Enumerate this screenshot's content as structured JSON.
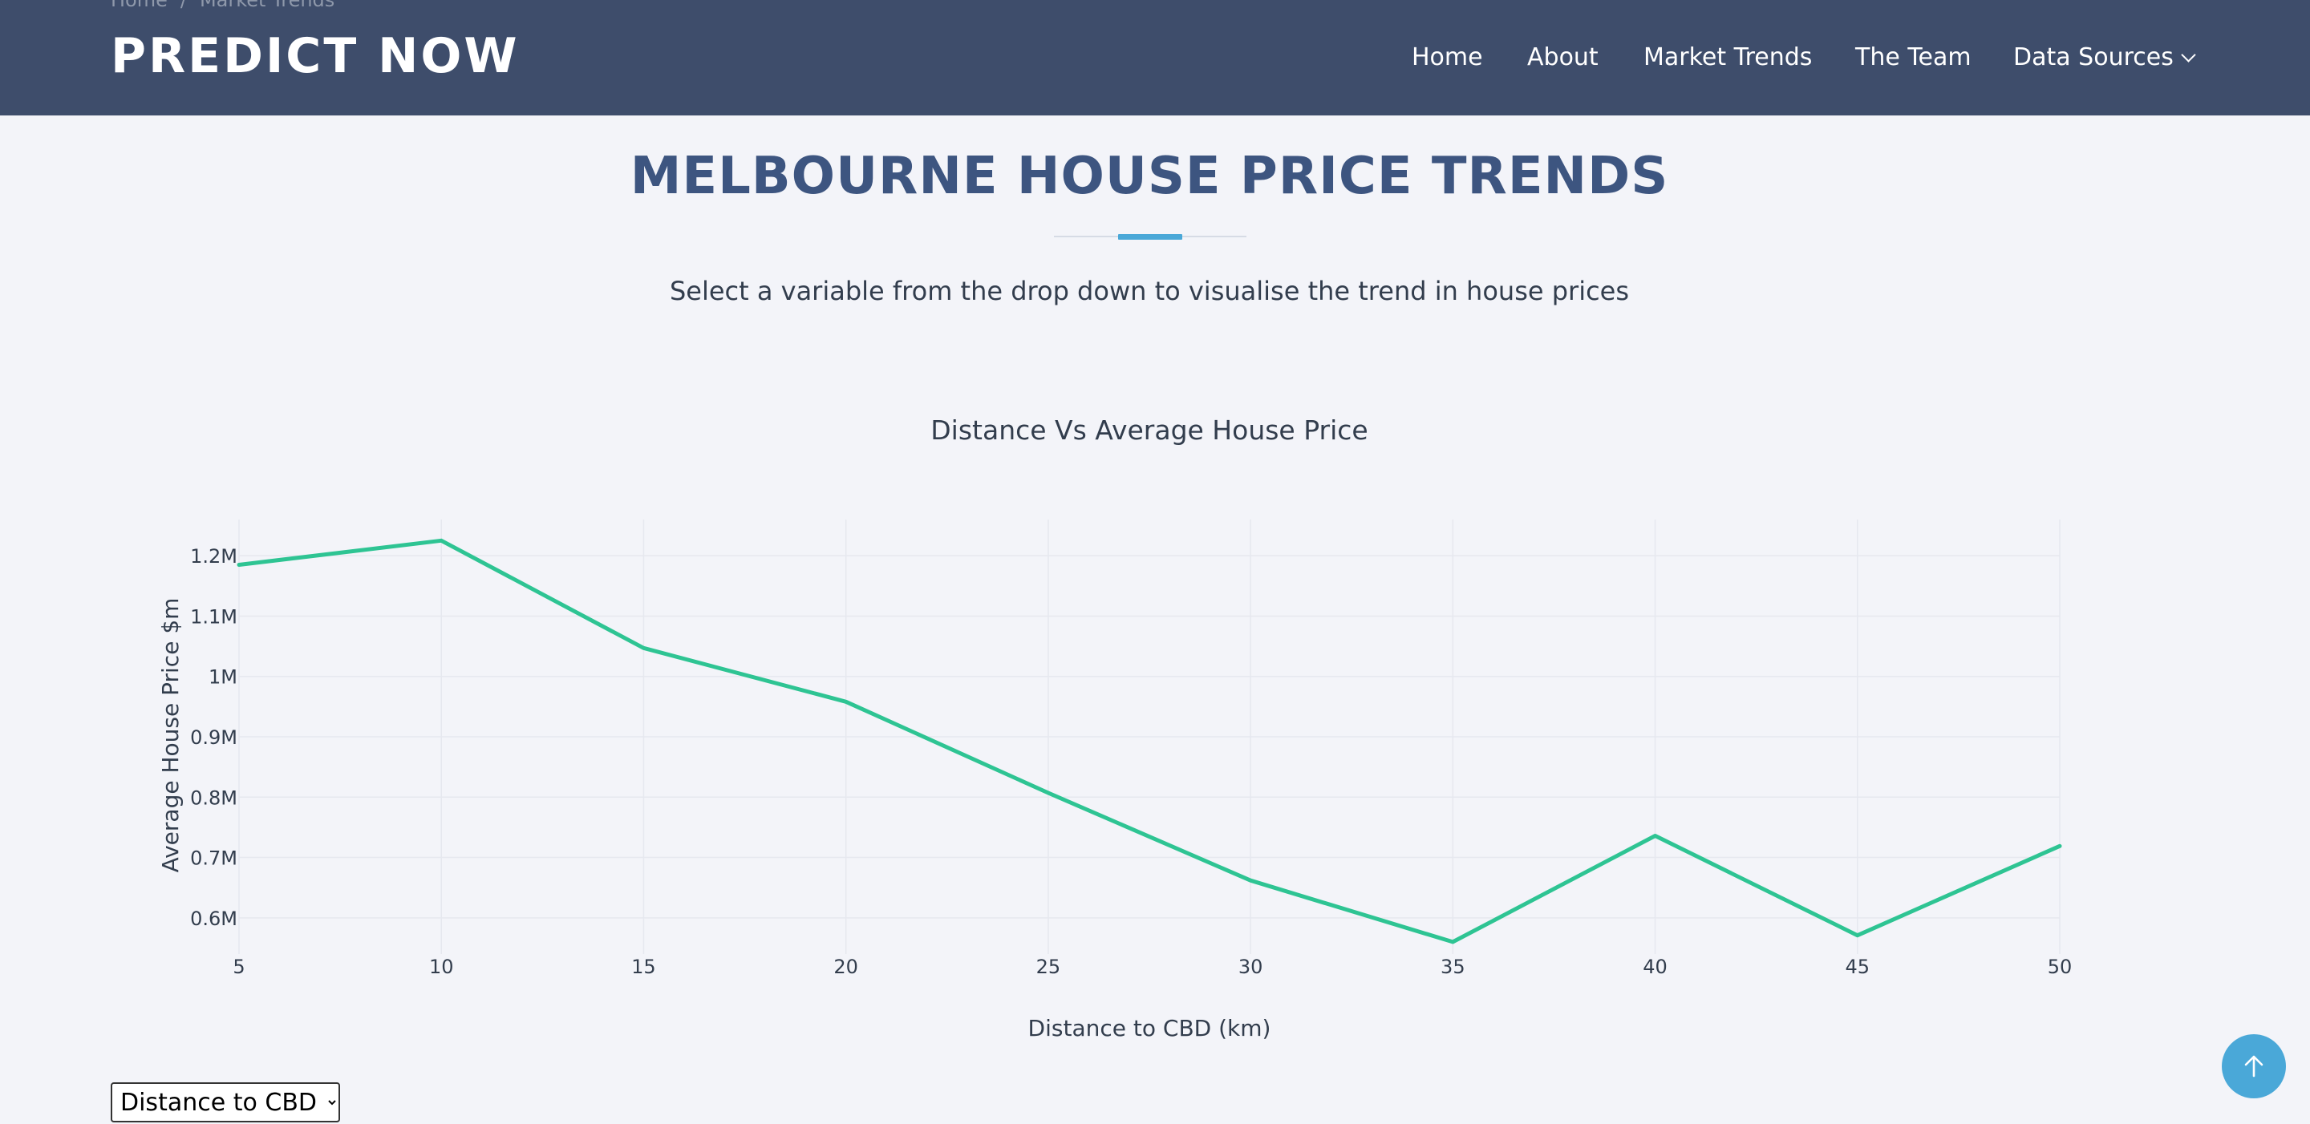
{
  "header": {
    "breadcrumb": [
      "Home",
      "/",
      "Market Trends"
    ],
    "logo": "PREDICT NOW",
    "nav": [
      {
        "label": "Home"
      },
      {
        "label": "About"
      },
      {
        "label": "Market Trends"
      },
      {
        "label": "The Team"
      },
      {
        "label": "Data Sources",
        "has_dropdown": true
      }
    ]
  },
  "main": {
    "title": "MELBOURNE HOUSE PRICE TRENDS",
    "subtitle": "Select a variable from the drop down to visualise the trend in house prices",
    "select": {
      "selected": "Distance to CBD",
      "options": [
        "Distance to CBD"
      ]
    }
  },
  "colors": {
    "header_bg": "#3e4d6b",
    "title": "#3d5580",
    "accent": "#4aa8d8",
    "line": "#2ec493",
    "page_bg": "#f3f4f9"
  },
  "chart_data": {
    "type": "line",
    "title": "Distance Vs Average House Price",
    "xlabel": "Distance to CBD (km)",
    "ylabel": "Average House Price $m",
    "x": [
      5,
      10,
      15,
      20,
      25,
      30,
      35,
      40,
      45,
      50
    ],
    "series": [
      {
        "values": [
          1185000,
          1225000,
          1047000,
          958000,
          807000,
          662000,
          560000,
          736000,
          571000,
          719000
        ]
      }
    ],
    "xlim": [
      5,
      50
    ],
    "ylim": [
      0.54,
      1.26
    ],
    "x_ticks": [
      "5",
      "10",
      "15",
      "20",
      "25",
      "30",
      "35",
      "40",
      "45",
      "50"
    ],
    "y_ticks": [
      {
        "value": 0.6,
        "label": "0.6M"
      },
      {
        "value": 0.7,
        "label": "0.7M"
      },
      {
        "value": 0.8,
        "label": "0.8M"
      },
      {
        "value": 0.9,
        "label": "0.9M"
      },
      {
        "value": 1.0,
        "label": "1M"
      },
      {
        "value": 1.1,
        "label": "1.1M"
      },
      {
        "value": 1.2,
        "label": "1.2M"
      }
    ],
    "grid": true,
    "legend": false
  }
}
